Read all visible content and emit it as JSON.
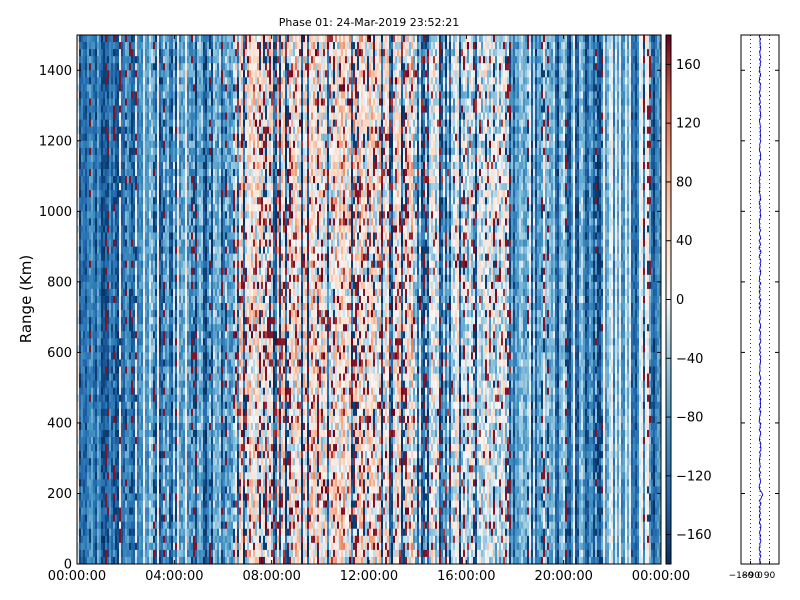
{
  "chart_data": [
    {
      "type": "heatmap",
      "title": "Phase 01: 24-Mar-2019 23:52:21",
      "xlabel": "",
      "ylabel": "Range (Km)",
      "x_ticks": [
        "00:00:00",
        "04:00:00",
        "08:00:00",
        "12:00:00",
        "16:00:00",
        "20:00:00",
        "00:00:00"
      ],
      "x_range_hours": [
        0,
        24
      ],
      "y_ticks": [
        0,
        200,
        400,
        600,
        800,
        1000,
        1200,
        1400
      ],
      "ylim": [
        0,
        1500
      ],
      "colormap": "RdBu_r",
      "colorbar": {
        "range": [
          -180,
          180
        ],
        "ticks": [
          -160,
          -120,
          -80,
          -40,
          0,
          40,
          80,
          120,
          160
        ],
        "tick_labels": [
          "−160",
          "−120",
          "−80",
          "−40",
          "0",
          "40",
          "80",
          "120",
          "160"
        ]
      },
      "grid": false
    },
    {
      "type": "line",
      "title": "",
      "xlabel": "",
      "ylabel": "",
      "x_ticks": [
        -180,
        -90,
        0,
        90
      ],
      "x_tick_labels": [
        "−180",
        "−90",
        "0",
        "90"
      ],
      "xlim": [
        -180,
        180
      ],
      "ylim": [
        0,
        1500
      ],
      "grid": "vertical dotted",
      "series": [
        {
          "color": "#0000cc",
          "mean_value": 0,
          "spread": 18
        }
      ]
    }
  ]
}
